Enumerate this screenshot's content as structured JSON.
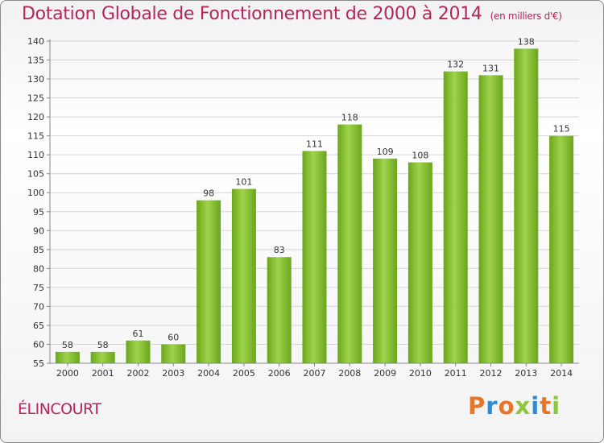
{
  "header": {
    "title": "Dotation Globale de Fonctionnement de 2000 à 2014",
    "subtitle": "(en milliers d'€)"
  },
  "footer": {
    "commune": "ÉLINCOURT",
    "logo_text": "Proxiti",
    "logo_colors": [
      "#e8752a",
      "#2d8bd0",
      "#e8752a",
      "#8dc63f",
      "#2d8bd0",
      "#e8752a",
      "#8dc63f"
    ]
  },
  "chart_data": {
    "type": "bar",
    "title": "Dotation Globale de Fonctionnement de 2000 à 2014",
    "subtitle": "(en milliers d'€)",
    "categories": [
      "2000",
      "2001",
      "2002",
      "2003",
      "2004",
      "2005",
      "2006",
      "2007",
      "2008",
      "2009",
      "2010",
      "2011",
      "2012",
      "2013",
      "2014"
    ],
    "values": [
      58,
      58,
      61,
      60,
      98,
      101,
      83,
      111,
      118,
      109,
      108,
      132,
      131,
      138,
      115
    ],
    "ylim": [
      55,
      140
    ],
    "yticks": [
      55,
      60,
      65,
      70,
      75,
      80,
      85,
      90,
      95,
      100,
      105,
      110,
      115,
      120,
      125,
      130,
      135,
      140
    ],
    "grid": true,
    "bar_color": "#7fbb2a",
    "bar_color_light": "#9fd34a",
    "label_color": "#333333"
  }
}
